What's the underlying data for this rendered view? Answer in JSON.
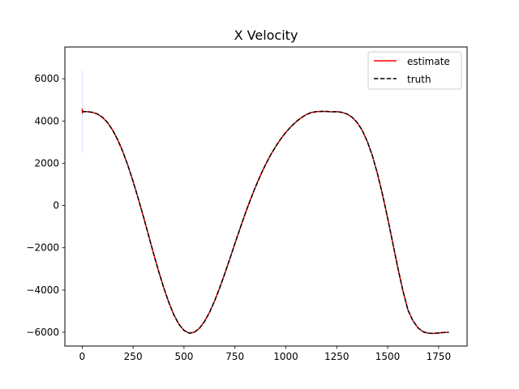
{
  "chart_data": {
    "type": "line",
    "title": "X Velocity",
    "xlabel": "",
    "ylabel": "",
    "xlim": [
      -85,
      1890
    ],
    "ylim": [
      -6650,
      7500
    ],
    "xticks": [
      0,
      250,
      500,
      750,
      1000,
      1250,
      1500,
      1750
    ],
    "yticks": [
      -6000,
      -4000,
      -2000,
      0,
      2000,
      4000,
      6000
    ],
    "grid": false,
    "legend_position": "top-right",
    "series": [
      {
        "name": "estimate",
        "color": "#ff0000",
        "style": "solid",
        "x": [
          0,
          0,
          2,
          4,
          10,
          25,
          50,
          75,
          100,
          125,
          150,
          175,
          200,
          225,
          250,
          275,
          300,
          325,
          350,
          375,
          400,
          425,
          450,
          475,
          500,
          525,
          550,
          575,
          600,
          625,
          650,
          675,
          700,
          725,
          750,
          775,
          800,
          825,
          850,
          875,
          900,
          925,
          950,
          975,
          1000,
          1025,
          1050,
          1075,
          1100,
          1125,
          1150,
          1175,
          1200,
          1225,
          1250,
          1275,
          1300,
          1325,
          1350,
          1375,
          1400,
          1425,
          1450,
          1475,
          1500,
          1525,
          1550,
          1575,
          1600,
          1625,
          1650,
          1675,
          1700,
          1725,
          1750,
          1775,
          1800
        ],
        "values": [
          4480,
          4560,
          4380,
          4470,
          4440,
          4440,
          4410,
          4330,
          4170,
          3920,
          3560,
          3100,
          2540,
          1880,
          1140,
          340,
          -500,
          -1380,
          -2260,
          -3100,
          -3880,
          -4580,
          -5170,
          -5620,
          -5910,
          -6040,
          -6000,
          -5820,
          -5500,
          -5060,
          -4520,
          -3900,
          -3230,
          -2520,
          -1800,
          -1090,
          -400,
          250,
          860,
          1420,
          1930,
          2390,
          2790,
          3150,
          3460,
          3730,
          3960,
          4150,
          4300,
          4400,
          4440,
          4450,
          4450,
          4430,
          4440,
          4410,
          4330,
          4180,
          3930,
          3560,
          3030,
          2350,
          1500,
          510,
          -600,
          -1770,
          -2950,
          -4040,
          -4960,
          -5470,
          -5800,
          -5980,
          -6040,
          -6050,
          -6030,
          -6010,
          -6000
        ]
      },
      {
        "name": "truth",
        "color": "#000000",
        "style": "dashed",
        "x": [
          0,
          25,
          50,
          75,
          100,
          125,
          150,
          175,
          200,
          225,
          250,
          275,
          300,
          325,
          350,
          375,
          400,
          425,
          450,
          475,
          500,
          525,
          550,
          575,
          600,
          625,
          650,
          675,
          700,
          725,
          750,
          775,
          800,
          825,
          850,
          875,
          900,
          925,
          950,
          975,
          1000,
          1025,
          1050,
          1075,
          1100,
          1125,
          1150,
          1175,
          1200,
          1225,
          1250,
          1275,
          1300,
          1325,
          1350,
          1375,
          1400,
          1425,
          1450,
          1475,
          1500,
          1525,
          1550,
          1575,
          1600,
          1625,
          1650,
          1675,
          1700,
          1725,
          1750,
          1775,
          1800
        ],
        "values": [
          4440,
          4440,
          4410,
          4330,
          4170,
          3920,
          3560,
          3100,
          2540,
          1880,
          1140,
          340,
          -500,
          -1380,
          -2260,
          -3100,
          -3880,
          -4580,
          -5170,
          -5620,
          -5910,
          -6040,
          -6000,
          -5820,
          -5500,
          -5060,
          -4520,
          -3900,
          -3230,
          -2520,
          -1800,
          -1090,
          -400,
          250,
          860,
          1420,
          1930,
          2390,
          2790,
          3150,
          3460,
          3730,
          3960,
          4150,
          4300,
          4400,
          4440,
          4450,
          4450,
          4430,
          4440,
          4410,
          4330,
          4180,
          3930,
          3560,
          3030,
          2350,
          1500,
          510,
          -600,
          -1770,
          -2950,
          -4040,
          -4960,
          -5470,
          -5800,
          -5980,
          -6040,
          -6050,
          -6030,
          -6010,
          -6000
        ]
      }
    ],
    "covariance_band": {
      "color": "#0000ff",
      "x": 0,
      "y_range": [
        2500,
        6400
      ]
    }
  }
}
